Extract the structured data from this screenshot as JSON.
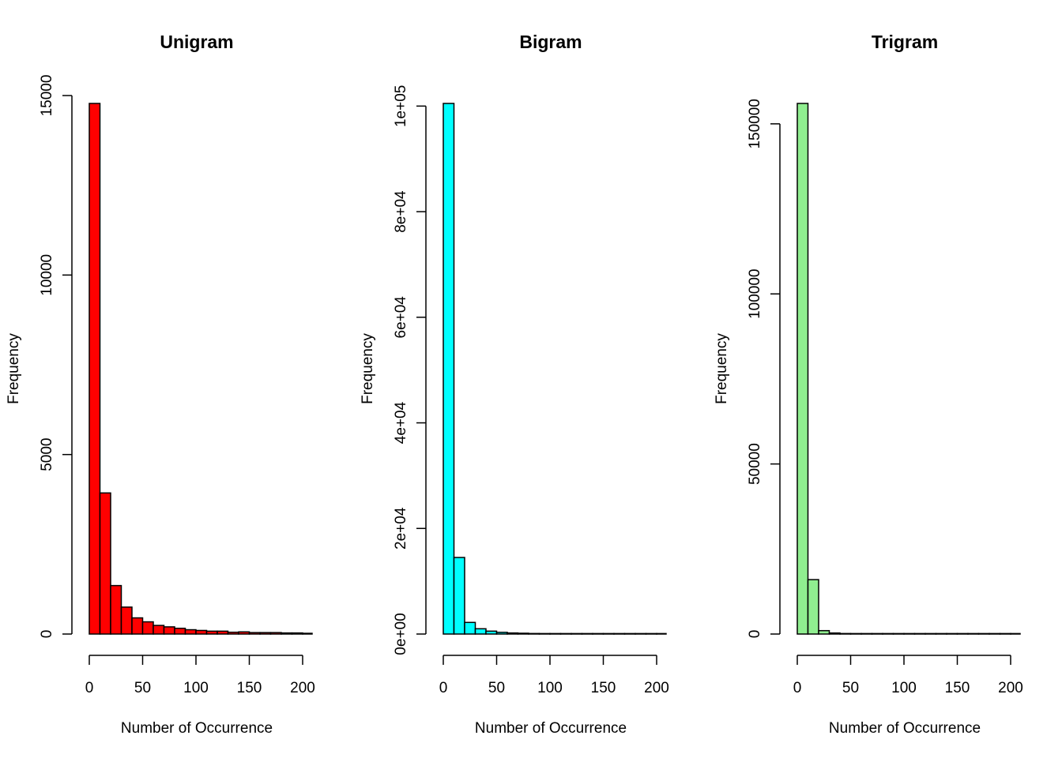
{
  "chart_data": [
    {
      "type": "bar",
      "title": "Unigram",
      "xlabel": "Number of Occurrence",
      "ylabel": "Frequency",
      "color": "#ff0000",
      "bin_width": 10,
      "xlim": [
        0,
        200
      ],
      "ylim": [
        0,
        15000
      ],
      "x_ticks": [
        "0",
        "50",
        "100",
        "150",
        "200"
      ],
      "y_ticks": [
        "0",
        "5000",
        "10000",
        "15000"
      ],
      "bin_starts": [
        0,
        10,
        20,
        30,
        40,
        50,
        60,
        70,
        80,
        90,
        100,
        110,
        120,
        130,
        140,
        150,
        160,
        170,
        180,
        190,
        200
      ],
      "values": [
        14780,
        3930,
        1350,
        750,
        450,
        340,
        240,
        200,
        160,
        120,
        100,
        80,
        80,
        50,
        60,
        40,
        40,
        40,
        30,
        30,
        20
      ]
    },
    {
      "type": "bar",
      "title": "Bigram",
      "xlabel": "Number of Occurrence",
      "ylabel": "Frequency",
      "color": "#00ffff",
      "bin_width": 10,
      "xlim": [
        0,
        200
      ],
      "ylim": [
        0,
        100000
      ],
      "x_ticks": [
        "0",
        "50",
        "100",
        "150",
        "200"
      ],
      "y_ticks": [
        "0e+00",
        "2e+04",
        "4e+04",
        "6e+04",
        "8e+04",
        "1e+05"
      ],
      "bin_starts": [
        0,
        10,
        20,
        30,
        40,
        50,
        60,
        70,
        80,
        90,
        100,
        110,
        120,
        130,
        140,
        150,
        160,
        170,
        180,
        190,
        200
      ],
      "values": [
        100500,
        14500,
        2200,
        1000,
        550,
        320,
        200,
        150,
        100,
        80,
        60,
        50,
        40,
        30,
        30,
        20,
        20,
        20,
        15,
        15,
        10
      ]
    },
    {
      "type": "bar",
      "title": "Trigram",
      "xlabel": "Number of Occurrence",
      "ylabel": "Frequency",
      "color": "#90ee90",
      "bin_width": 10,
      "xlim": [
        0,
        200
      ],
      "ylim": [
        0,
        150000
      ],
      "x_ticks": [
        "0",
        "50",
        "100",
        "150",
        "200"
      ],
      "y_ticks": [
        "0",
        "50000",
        "100000",
        "150000"
      ],
      "bin_starts": [
        0,
        10,
        20,
        30,
        40,
        50,
        60,
        70,
        80,
        90,
        100,
        110,
        120,
        130,
        140,
        150,
        160,
        170,
        180,
        190,
        200
      ],
      "values": [
        156000,
        16000,
        1000,
        300,
        150,
        80,
        50,
        30,
        20,
        15,
        10,
        10,
        8,
        6,
        5,
        5,
        4,
        4,
        3,
        3,
        2
      ]
    }
  ]
}
